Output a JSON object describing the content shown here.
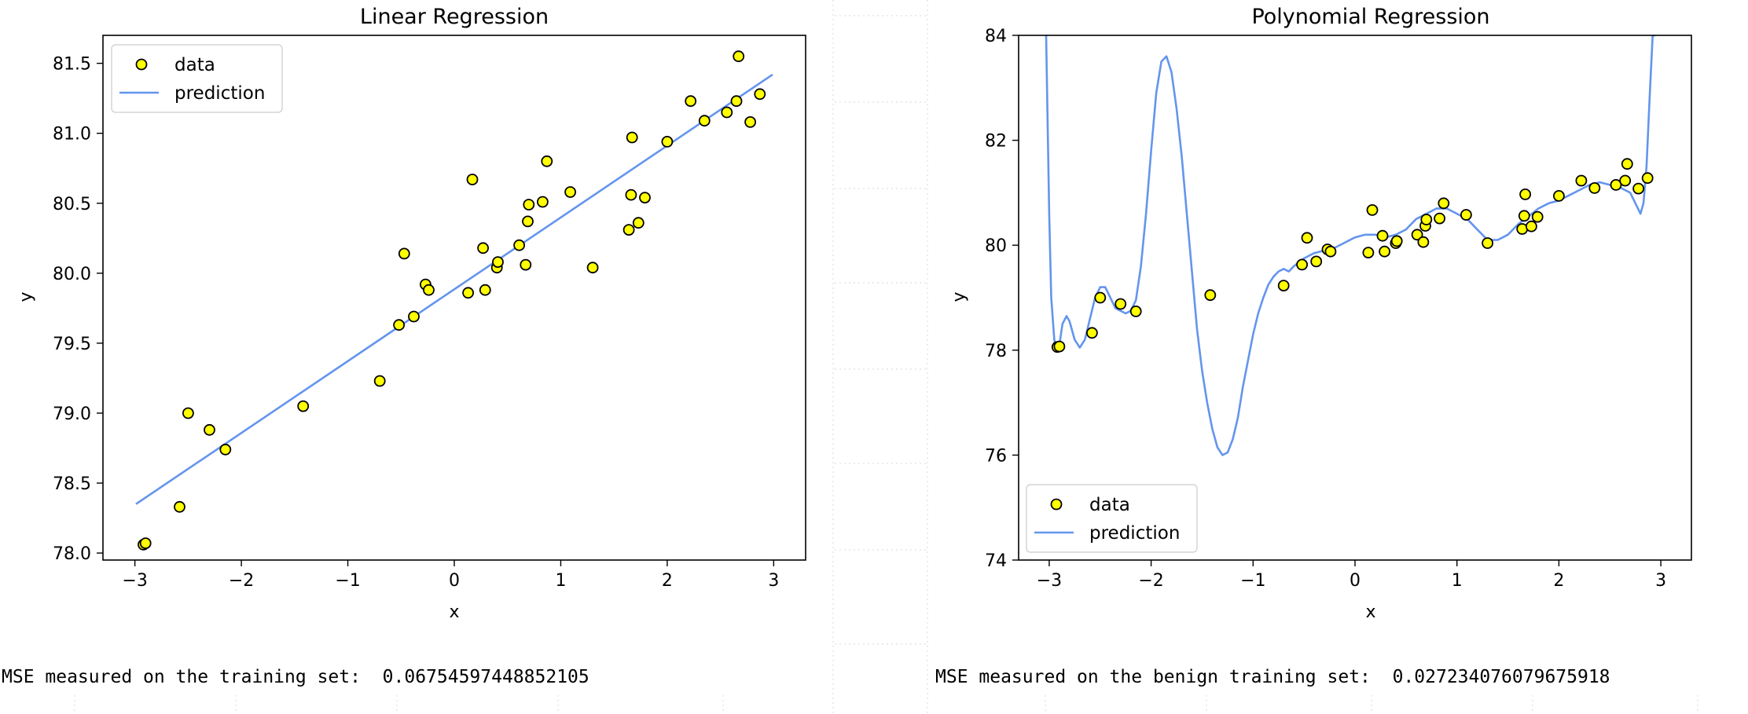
{
  "chart_data": [
    {
      "type": "scatter",
      "title": "Linear Regression",
      "xlabel": "x",
      "ylabel": "y",
      "xlim": [
        -3.3,
        3.3
      ],
      "ylim": [
        77.95,
        81.7
      ],
      "xticks": [
        -3,
        -2,
        -1,
        0,
        1,
        2,
        3
      ],
      "yticks": [
        78.0,
        78.5,
        79.0,
        79.5,
        80.0,
        80.5,
        81.0,
        81.5
      ],
      "ytick_labels": [
        "78.0",
        "78.5",
        "79.0",
        "79.5",
        "80.0",
        "80.5",
        "81.0",
        "81.5"
      ],
      "legend": {
        "position": "top-left",
        "entries": [
          "data",
          "prediction"
        ]
      },
      "series": [
        {
          "name": "data",
          "kind": "scatter",
          "x": [
            -2.92,
            -2.9,
            -2.58,
            -2.5,
            -2.3,
            -2.15,
            -1.42,
            -0.7,
            -0.52,
            -0.47,
            -0.38,
            -0.27,
            -0.24,
            0.13,
            0.17,
            0.27,
            0.29,
            0.4,
            0.41,
            0.61,
            0.67,
            0.69,
            0.7,
            0.83,
            0.87,
            1.09,
            1.3,
            1.64,
            1.66,
            1.67,
            1.73,
            1.79,
            2.0,
            2.22,
            2.35,
            2.56,
            2.65,
            2.67,
            2.78,
            2.87
          ],
          "y": [
            78.06,
            78.07,
            78.33,
            79.0,
            78.88,
            78.74,
            79.05,
            79.23,
            79.63,
            80.14,
            79.69,
            79.92,
            79.88,
            79.86,
            80.67,
            80.18,
            79.88,
            80.04,
            80.08,
            80.2,
            80.06,
            80.37,
            80.49,
            80.51,
            80.8,
            80.58,
            80.04,
            80.31,
            80.56,
            80.97,
            80.36,
            80.54,
            80.94,
            81.23,
            81.09,
            81.15,
            81.23,
            81.55,
            81.08,
            81.28
          ]
        },
        {
          "name": "prediction",
          "kind": "line",
          "x": [
            -2.99,
            2.99
          ],
          "y": [
            78.35,
            81.42
          ]
        }
      ]
    },
    {
      "type": "scatter",
      "title": "Polynomial Regression",
      "xlabel": "x",
      "ylabel": "y",
      "xlim": [
        -3.3,
        3.3
      ],
      "ylim": [
        74,
        84
      ],
      "xticks": [
        -3,
        -2,
        -1,
        0,
        1,
        2,
        3
      ],
      "yticks": [
        74,
        76,
        78,
        80,
        82,
        84
      ],
      "ytick_labels": [
        "74",
        "76",
        "78",
        "80",
        "82",
        "84"
      ],
      "legend": {
        "position": "bottom-left",
        "entries": [
          "data",
          "prediction"
        ]
      },
      "series": [
        {
          "name": "data",
          "kind": "scatter",
          "x": [
            -2.92,
            -2.9,
            -2.58,
            -2.5,
            -2.3,
            -2.15,
            -1.42,
            -0.7,
            -0.52,
            -0.47,
            -0.38,
            -0.27,
            -0.24,
            0.13,
            0.17,
            0.27,
            0.29,
            0.4,
            0.41,
            0.61,
            0.67,
            0.69,
            0.7,
            0.83,
            0.87,
            1.09,
            1.3,
            1.64,
            1.66,
            1.67,
            1.73,
            1.79,
            2.0,
            2.22,
            2.35,
            2.56,
            2.65,
            2.67,
            2.78,
            2.87
          ],
          "y": [
            78.06,
            78.07,
            78.33,
            79.0,
            78.88,
            78.74,
            79.05,
            79.23,
            79.63,
            80.14,
            79.69,
            79.92,
            79.88,
            79.86,
            80.67,
            80.18,
            79.88,
            80.04,
            80.08,
            80.2,
            80.06,
            80.37,
            80.49,
            80.51,
            80.8,
            80.58,
            80.04,
            80.31,
            80.56,
            80.97,
            80.36,
            80.54,
            80.94,
            81.23,
            81.09,
            81.15,
            81.23,
            81.55,
            81.08,
            81.28
          ]
        },
        {
          "name": "prediction",
          "kind": "line",
          "x": [
            -3.03,
            -3.0,
            -2.98,
            -2.95,
            -2.93,
            -2.9,
            -2.87,
            -2.83,
            -2.8,
            -2.75,
            -2.7,
            -2.65,
            -2.6,
            -2.55,
            -2.5,
            -2.45,
            -2.4,
            -2.35,
            -2.3,
            -2.25,
            -2.2,
            -2.15,
            -2.1,
            -2.05,
            -2.0,
            -1.95,
            -1.9,
            -1.85,
            -1.8,
            -1.75,
            -1.7,
            -1.65,
            -1.6,
            -1.55,
            -1.5,
            -1.45,
            -1.4,
            -1.35,
            -1.3,
            -1.25,
            -1.2,
            -1.15,
            -1.1,
            -1.05,
            -1.0,
            -0.95,
            -0.9,
            -0.85,
            -0.8,
            -0.75,
            -0.7,
            -0.65,
            -0.6,
            -0.5,
            -0.4,
            -0.3,
            -0.2,
            -0.1,
            0.0,
            0.1,
            0.2,
            0.3,
            0.4,
            0.5,
            0.6,
            0.7,
            0.8,
            0.9,
            1.0,
            1.1,
            1.2,
            1.3,
            1.4,
            1.5,
            1.6,
            1.7,
            1.8,
            1.9,
            2.0,
            2.1,
            2.2,
            2.3,
            2.4,
            2.5,
            2.6,
            2.7,
            2.75,
            2.8,
            2.83,
            2.86,
            2.89,
            2.92,
            2.95
          ],
          "y": [
            84.0,
            80.6,
            79.0,
            78.2,
            78.0,
            78.1,
            78.5,
            78.65,
            78.55,
            78.2,
            78.05,
            78.2,
            78.6,
            79.0,
            79.2,
            79.2,
            79.0,
            78.8,
            78.75,
            78.7,
            78.75,
            78.95,
            79.6,
            80.6,
            81.8,
            82.9,
            83.5,
            83.6,
            83.3,
            82.6,
            81.7,
            80.6,
            79.5,
            78.4,
            77.6,
            77.0,
            76.5,
            76.15,
            76.0,
            76.05,
            76.3,
            76.7,
            77.3,
            77.8,
            78.3,
            78.7,
            79.0,
            79.25,
            79.4,
            79.5,
            79.55,
            79.5,
            79.6,
            79.75,
            79.85,
            79.9,
            79.95,
            80.05,
            80.15,
            80.2,
            80.2,
            80.15,
            80.2,
            80.3,
            80.5,
            80.6,
            80.7,
            80.7,
            80.6,
            80.5,
            80.3,
            80.1,
            80.1,
            80.2,
            80.4,
            80.55,
            80.7,
            80.8,
            80.85,
            80.95,
            81.05,
            81.15,
            81.2,
            81.15,
            81.1,
            81.0,
            80.8,
            80.6,
            80.8,
            81.5,
            82.8,
            84.0,
            84.0
          ]
        }
      ]
    }
  ],
  "output_text": {
    "left": "MSE measured on the training set:  0.06754597448852105",
    "right": "MSE measured on the benign training set:  0.027234076079675918"
  },
  "colors": {
    "scatter_fill": "#ffff00",
    "scatter_edge": "#000000",
    "line": "#6495ed",
    "axes": "#000000",
    "background_grid": "#d9d9d9"
  }
}
